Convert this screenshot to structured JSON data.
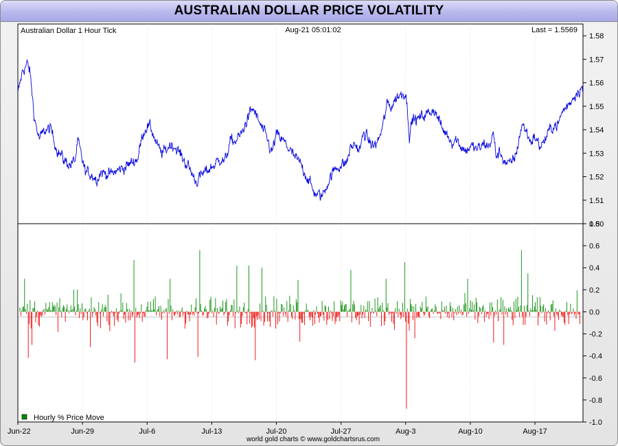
{
  "header": {
    "title": "AUSTRALIAN DOLLAR PRICE VOLATILITY"
  },
  "chart_data": [
    {
      "type": "line",
      "label": "Australian Dollar 1 Hour Tick",
      "timestamp": "Aug-21  05:01:02",
      "last_label": "Last = 1.5569",
      "last": 1.5569,
      "color": "#0000dd",
      "ylim": [
        1.5,
        1.585
      ],
      "y_ticks": [
        "1.58",
        "1.57",
        "1.56",
        "1.55",
        "1.54",
        "1.53",
        "1.52",
        "1.51",
        "1.50"
      ],
      "x_ticks": [
        "Jun-22",
        "Jun-29",
        "Jul-6",
        "Jul-13",
        "Jul-20",
        "Jul-27",
        "Aug-3",
        "Aug-10",
        "Aug-17"
      ],
      "x_range_days": [
        0,
        61.2
      ],
      "anchors": [
        [
          0,
          1.555
        ],
        [
          0.5,
          1.565
        ],
        [
          1.0,
          1.568
        ],
        [
          1.3,
          1.565
        ],
        [
          1.8,
          1.545
        ],
        [
          2.3,
          1.536
        ],
        [
          3.0,
          1.54
        ],
        [
          3.6,
          1.54
        ],
        [
          4.2,
          1.532
        ],
        [
          5.0,
          1.527
        ],
        [
          5.7,
          1.525
        ],
        [
          6.2,
          1.527
        ],
        [
          6.5,
          1.535
        ],
        [
          6.8,
          1.53
        ],
        [
          7.3,
          1.522
        ],
        [
          8.0,
          1.521
        ],
        [
          8.5,
          1.519
        ],
        [
          9.0,
          1.522
        ],
        [
          10.0,
          1.521
        ],
        [
          11.0,
          1.523
        ],
        [
          12.0,
          1.525
        ],
        [
          13.0,
          1.528
        ],
        [
          13.5,
          1.538
        ],
        [
          14.0,
          1.542
        ],
        [
          14.5,
          1.54
        ],
        [
          15.0,
          1.534
        ],
        [
          15.5,
          1.53
        ],
        [
          16.0,
          1.531
        ],
        [
          16.5,
          1.534
        ],
        [
          17.0,
          1.533
        ],
        [
          17.5,
          1.53
        ],
        [
          18.0,
          1.527
        ],
        [
          18.5,
          1.524
        ],
        [
          19.3,
          1.518
        ],
        [
          20.0,
          1.521
        ],
        [
          20.6,
          1.523
        ],
        [
          21.3,
          1.525
        ],
        [
          22.0,
          1.528
        ],
        [
          22.4,
          1.526
        ],
        [
          23.0,
          1.535
        ],
        [
          23.5,
          1.535
        ],
        [
          24.2,
          1.538
        ],
        [
          25.0,
          1.546
        ],
        [
          25.5,
          1.549
        ],
        [
          25.9,
          1.545
        ],
        [
          26.5,
          1.54
        ],
        [
          27.0,
          1.536
        ],
        [
          27.5,
          1.53
        ],
        [
          28.0,
          1.538
        ],
        [
          28.5,
          1.536
        ],
        [
          29.0,
          1.534
        ],
        [
          29.5,
          1.531
        ],
        [
          30.0,
          1.528
        ],
        [
          30.7,
          1.525
        ],
        [
          31.3,
          1.52
        ],
        [
          32.0,
          1.514
        ],
        [
          32.5,
          1.512
        ],
        [
          33.0,
          1.512
        ],
        [
          33.5,
          1.517
        ],
        [
          34.0,
          1.521
        ],
        [
          34.5,
          1.524
        ],
        [
          35.0,
          1.525
        ],
        [
          35.6,
          1.526
        ],
        [
          36.0,
          1.532
        ],
        [
          36.5,
          1.534
        ],
        [
          37.0,
          1.531
        ],
        [
          37.5,
          1.539
        ],
        [
          38.0,
          1.535
        ],
        [
          38.5,
          1.533
        ],
        [
          39.0,
          1.535
        ],
        [
          39.5,
          1.541
        ],
        [
          40.0,
          1.551
        ],
        [
          40.5,
          1.55
        ],
        [
          41.0,
          1.554
        ],
        [
          41.5,
          1.555
        ],
        [
          42.0,
          1.556
        ],
        [
          42.2,
          1.548
        ],
        [
          42.4,
          1.538
        ],
        [
          42.8,
          1.545
        ],
        [
          43.2,
          1.544
        ],
        [
          43.8,
          1.546
        ],
        [
          44.5,
          1.547
        ],
        [
          45.0,
          1.549
        ],
        [
          45.5,
          1.545
        ],
        [
          46.0,
          1.54
        ],
        [
          46.5,
          1.538
        ],
        [
          47.0,
          1.535
        ],
        [
          47.5,
          1.536
        ],
        [
          48.0,
          1.533
        ],
        [
          48.5,
          1.531
        ],
        [
          49.0,
          1.533
        ],
        [
          49.5,
          1.532
        ],
        [
          50.0,
          1.532
        ],
        [
          50.5,
          1.534
        ],
        [
          51.0,
          1.533
        ],
        [
          51.5,
          1.538
        ],
        [
          51.8,
          1.529
        ],
        [
          52.3,
          1.53
        ],
        [
          52.8,
          1.526
        ],
        [
          53.3,
          1.525
        ],
        [
          53.6,
          1.527
        ],
        [
          54.0,
          1.53
        ],
        [
          54.3,
          1.537
        ],
        [
          54.6,
          1.542
        ],
        [
          55.0,
          1.54
        ],
        [
          55.5,
          1.535
        ],
        [
          56.0,
          1.537
        ],
        [
          56.5,
          1.533
        ],
        [
          57.0,
          1.535
        ],
        [
          57.5,
          1.539
        ],
        [
          58.0,
          1.542
        ],
        [
          58.5,
          1.542
        ],
        [
          59.0,
          1.548
        ],
        [
          59.5,
          1.55
        ],
        [
          60.0,
          1.553
        ],
        [
          60.5,
          1.556
        ],
        [
          61.0,
          1.558
        ],
        [
          61.2,
          1.5569
        ]
      ]
    },
    {
      "type": "bar",
      "label": "Hourly % Price Move",
      "ylim": [
        -1.0,
        0.8
      ],
      "y_ticks": [
        "0.8",
        "0.6",
        "0.4",
        "0.2",
        "0.0",
        "-0.2",
        "-0.4",
        "-0.6",
        "-0.8",
        "-1.0"
      ],
      "up_color": "#008800",
      "down_color": "#ee0000",
      "notable_moves": [
        [
          0.55,
          0.3
        ],
        [
          0.9,
          -0.42
        ],
        [
          1.3,
          -0.3
        ],
        [
          5.8,
          0.2
        ],
        [
          7.6,
          -0.32
        ],
        [
          12.3,
          0.47
        ],
        [
          12.4,
          -0.46
        ],
        [
          16.0,
          -0.43
        ],
        [
          16.3,
          0.3
        ],
        [
          19.3,
          -0.41
        ],
        [
          19.5,
          0.56
        ],
        [
          23.5,
          0.42
        ],
        [
          24.8,
          0.42
        ],
        [
          25.5,
          -0.44
        ],
        [
          26.2,
          0.4
        ],
        [
          30.1,
          0.29
        ],
        [
          30.3,
          -0.27
        ],
        [
          35.8,
          0.38
        ],
        [
          39.7,
          0.3
        ],
        [
          41.7,
          0.45
        ],
        [
          41.9,
          -0.88
        ],
        [
          42.8,
          -0.24
        ],
        [
          48.5,
          0.3
        ],
        [
          51.3,
          -0.28
        ],
        [
          52.4,
          -0.3
        ],
        [
          54.3,
          0.56
        ],
        [
          54.5,
          -0.12
        ],
        [
          55.0,
          0.35
        ]
      ]
    }
  ],
  "legend": {
    "swatch_color": "#008800",
    "label": "Hourly % Price Move"
  },
  "credit": "world gold charts © www.goldchartsrus.com"
}
